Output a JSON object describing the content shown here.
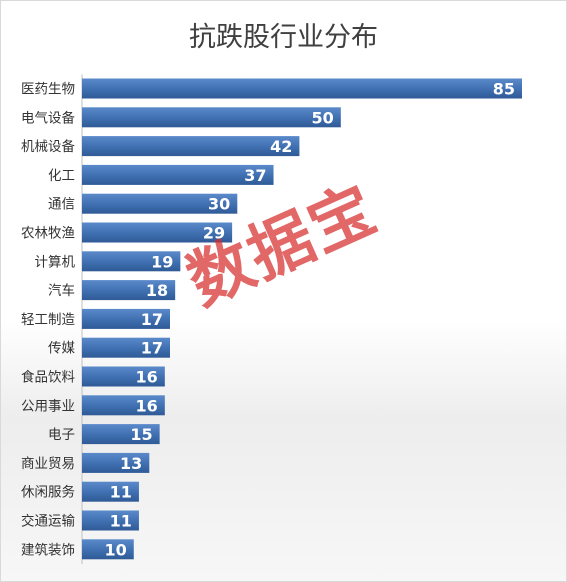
{
  "chart_data": {
    "type": "bar",
    "orientation": "horizontal",
    "title": "抗跌股行业分布",
    "categories": [
      "医药生物",
      "电气设备",
      "机械设备",
      "化工",
      "通信",
      "农林牧渔",
      "计算机",
      "汽车",
      "轻工制造",
      "传媒",
      "食品饮料",
      "公用事业",
      "电子",
      "商业贸易",
      "休闲服务",
      "交通运输",
      "建筑装饰"
    ],
    "values": [
      85,
      50,
      42,
      37,
      30,
      29,
      19,
      18,
      17,
      17,
      16,
      16,
      15,
      13,
      11,
      11,
      10
    ],
    "bar_color": "#3f6fb0",
    "data_labels": true,
    "grid": false
  },
  "watermark": "数据宝"
}
